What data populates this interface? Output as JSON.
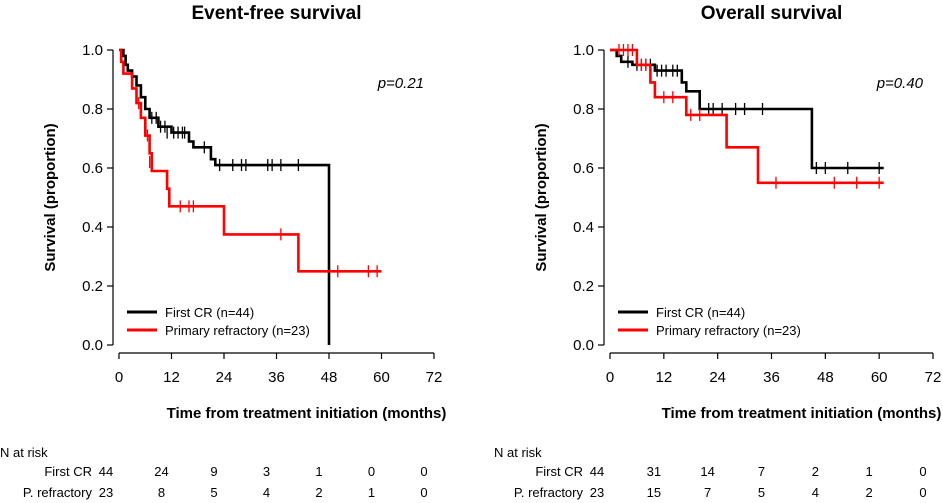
{
  "colors": {
    "first_cr": "#000000",
    "primary_refractory": "#ff0000",
    "axis": "#000000"
  },
  "chart_data": [
    {
      "type": "line",
      "subtype": "kaplan-meier",
      "title": "Event-free survival",
      "xlabel": "Time from treatment initiation (months)",
      "ylabel": "Survival (proportion)",
      "xlim": [
        0,
        72
      ],
      "ylim": [
        0,
        1.0
      ],
      "xticks": [
        "0",
        "12",
        "24",
        "36",
        "48",
        "60",
        "72"
      ],
      "yticks": [
        "0.0",
        "0.2",
        "0.4",
        "0.6",
        "0.8",
        "1.0"
      ],
      "p_value": "p=0.21",
      "legend": [
        "First CR (n=44)",
        "Primary refractory (n=23)"
      ],
      "legend_position": "bottom-left",
      "series": [
        {
          "name": "First CR (n=44)",
          "color": "#000000",
          "steps": [
            [
              0,
              1.0
            ],
            [
              1,
              0.98
            ],
            [
              1.5,
              0.95
            ],
            [
              2,
              0.93
            ],
            [
              3,
              0.91
            ],
            [
              4,
              0.88
            ],
            [
              5,
              0.84
            ],
            [
              6,
              0.8
            ],
            [
              7,
              0.77
            ],
            [
              9,
              0.74
            ],
            [
              12,
              0.72
            ],
            [
              13,
              0.72
            ],
            [
              16,
              0.69
            ],
            [
              17,
              0.67
            ],
            [
              19,
              0.67
            ],
            [
              21,
              0.63
            ],
            [
              22,
              0.61
            ],
            [
              48,
              0.61
            ],
            [
              48,
              0.0
            ]
          ],
          "end": 49,
          "censors": [
            [
              7.5,
              0.77
            ],
            [
              8.5,
              0.77
            ],
            [
              9.5,
              0.74
            ],
            [
              10.5,
              0.74
            ],
            [
              11,
              0.72
            ],
            [
              12.5,
              0.72
            ],
            [
              13.5,
              0.72
            ],
            [
              14.5,
              0.72
            ],
            [
              15,
              0.72
            ],
            [
              19.5,
              0.67
            ],
            [
              23,
              0.61
            ],
            [
              26,
              0.61
            ],
            [
              28,
              0.61
            ],
            [
              29,
              0.61
            ],
            [
              34,
              0.61
            ],
            [
              35,
              0.61
            ],
            [
              37,
              0.61
            ],
            [
              41,
              0.61
            ]
          ]
        },
        {
          "name": "Primary refractory (n=23)",
          "color": "#ff0000",
          "steps": [
            [
              0,
              1.0
            ],
            [
              0.5,
              0.96
            ],
            [
              1,
              0.92
            ],
            [
              3,
              0.87
            ],
            [
              4,
              0.82
            ],
            [
              5,
              0.77
            ],
            [
              6,
              0.71
            ],
            [
              7,
              0.65
            ],
            [
              7.5,
              0.59
            ],
            [
              11,
              0.53
            ],
            [
              11.5,
              0.47
            ],
            [
              24,
              0.375
            ],
            [
              41,
              0.25
            ]
          ],
          "end": 60,
          "censors": [
            [
              4.5,
              0.82
            ],
            [
              6.5,
              0.71
            ],
            [
              7,
              0.62
            ],
            [
              14,
              0.47
            ],
            [
              16,
              0.47
            ],
            [
              17,
              0.47
            ],
            [
              37,
              0.375
            ],
            [
              50,
              0.25
            ],
            [
              57,
              0.25
            ],
            [
              59,
              0.25
            ]
          ]
        }
      ],
      "n_at_risk": {
        "label": "N at risk",
        "times": [
          0,
          12,
          24,
          36,
          48,
          60,
          72
        ],
        "rows": [
          {
            "label": "First CR",
            "values": [
              "44",
              "24",
              "9",
              "3",
              "1",
              "0",
              "0"
            ]
          },
          {
            "label": "P. refractory",
            "values": [
              "23",
              "8",
              "5",
              "4",
              "2",
              "1",
              "0"
            ]
          }
        ]
      }
    },
    {
      "type": "line",
      "subtype": "kaplan-meier",
      "title": "Overall survival",
      "xlabel": "Time from treatment initiation (months)",
      "ylabel": "Survival (proportion)",
      "xlim": [
        0,
        72
      ],
      "ylim": [
        0,
        1.0
      ],
      "xticks": [
        "0",
        "12",
        "24",
        "36",
        "48",
        "60",
        "72"
      ],
      "yticks": [
        "0.0",
        "0.2",
        "0.4",
        "0.6",
        "0.8",
        "1.0"
      ],
      "p_value": "p=0.40",
      "legend": [
        "First CR (n=44)",
        "Primary refractory (n=23)"
      ],
      "legend_position": "bottom-left",
      "series": [
        {
          "name": "First CR (n=44)",
          "color": "#000000",
          "steps": [
            [
              0,
              1.0
            ],
            [
              1.5,
              0.98
            ],
            [
              2.5,
              0.96
            ],
            [
              5,
              0.95
            ],
            [
              10,
              0.93
            ],
            [
              16,
              0.89
            ],
            [
              17,
              0.86
            ],
            [
              20,
              0.8
            ],
            [
              45,
              0.6
            ]
          ],
          "end": 61,
          "censors": [
            [
              4,
              0.96
            ],
            [
              6,
              0.95
            ],
            [
              7,
              0.95
            ],
            [
              8,
              0.95
            ],
            [
              9,
              0.95
            ],
            [
              10.5,
              0.93
            ],
            [
              11.5,
              0.93
            ],
            [
              12.5,
              0.93
            ],
            [
              14,
              0.93
            ],
            [
              15,
              0.93
            ],
            [
              22,
              0.8
            ],
            [
              23,
              0.8
            ],
            [
              25,
              0.8
            ],
            [
              28,
              0.8
            ],
            [
              30,
              0.8
            ],
            [
              34,
              0.8
            ],
            [
              46,
              0.6
            ],
            [
              48,
              0.6
            ],
            [
              53,
              0.6
            ],
            [
              60,
              0.6
            ]
          ]
        },
        {
          "name": "Primary refractory (n=23)",
          "color": "#ff0000",
          "steps": [
            [
              0,
              1.0
            ],
            [
              6,
              0.95
            ],
            [
              9,
              0.89
            ],
            [
              10,
              0.84
            ],
            [
              17,
              0.78
            ],
            [
              26,
              0.67
            ],
            [
              33,
              0.55
            ]
          ],
          "end": 61,
          "censors": [
            [
              2,
              1.0
            ],
            [
              3,
              1.0
            ],
            [
              4,
              1.0
            ],
            [
              5,
              1.0
            ],
            [
              7,
              0.95
            ],
            [
              8,
              0.95
            ],
            [
              12,
              0.84
            ],
            [
              14,
              0.84
            ],
            [
              18,
              0.78
            ],
            [
              20,
              0.78
            ],
            [
              37,
              0.55
            ],
            [
              50,
              0.55
            ],
            [
              55,
              0.55
            ],
            [
              60,
              0.55
            ]
          ]
        }
      ],
      "n_at_risk": {
        "label": "N at risk",
        "times": [
          0,
          12,
          24,
          36,
          48,
          60,
          72
        ],
        "rows": [
          {
            "label": "First CR",
            "values": [
              "44",
              "31",
              "14",
              "7",
              "2",
              "1",
              "0"
            ]
          },
          {
            "label": "P. refractory",
            "values": [
              "23",
              "15",
              "7",
              "5",
              "4",
              "2",
              "0"
            ]
          }
        ]
      }
    }
  ]
}
